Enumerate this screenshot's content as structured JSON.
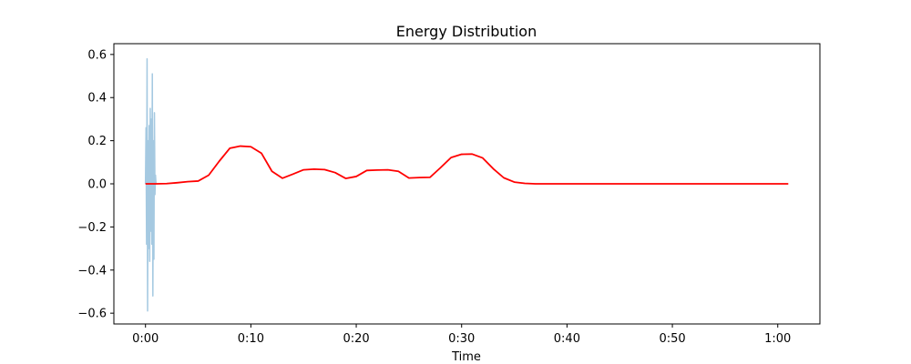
{
  "chart_data": {
    "type": "line",
    "title": "Energy Distribution",
    "xlabel": "Time",
    "ylabel": "",
    "xlim": [
      -3,
      64
    ],
    "ylim": [
      -0.65,
      0.65
    ],
    "grid": false,
    "x_ticks": [
      {
        "value": 0,
        "label": "0:00"
      },
      {
        "value": 10,
        "label": "0:10"
      },
      {
        "value": 20,
        "label": "0:20"
      },
      {
        "value": 30,
        "label": "0:30"
      },
      {
        "value": 40,
        "label": "0:40"
      },
      {
        "value": 50,
        "label": "0:50"
      },
      {
        "value": 60,
        "label": "1:00"
      }
    ],
    "y_ticks": [
      {
        "value": 0.6,
        "label": "0.6"
      },
      {
        "value": 0.4,
        "label": "0.4"
      },
      {
        "value": 0.2,
        "label": "0.2"
      },
      {
        "value": 0.0,
        "label": "0.0"
      },
      {
        "value": -0.2,
        "label": "−0.2"
      },
      {
        "value": -0.4,
        "label": "−0.4"
      },
      {
        "value": -0.6,
        "label": "−0.6"
      }
    ],
    "series": [
      {
        "color": "#1f77b4",
        "opacity": 0.4,
        "x": [
          0.0,
          0.05,
          0.1,
          0.15,
          0.2,
          0.25,
          0.3,
          0.35,
          0.4,
          0.45,
          0.5,
          0.55,
          0.6,
          0.65,
          0.7,
          0.75,
          0.8,
          0.85,
          0.9,
          0.95,
          1.0
        ],
        "y": [
          0.0,
          0.26,
          -0.28,
          0.58,
          -0.59,
          0.2,
          -0.3,
          0.27,
          -0.36,
          0.35,
          -0.22,
          0.3,
          -0.28,
          0.51,
          -0.52,
          0.2,
          -0.35,
          0.33,
          -0.05,
          0.04,
          0.0
        ]
      },
      {
        "color": "#ff0000",
        "opacity": 1,
        "x": [
          0,
          1,
          2,
          3,
          4,
          5,
          6,
          7,
          8,
          9,
          10,
          11,
          12,
          13,
          14,
          15,
          16,
          17,
          18,
          19,
          20,
          21,
          22,
          23,
          24,
          25,
          26,
          27,
          28,
          29,
          30,
          31,
          32,
          33,
          34,
          35,
          36,
          37,
          38,
          39,
          40,
          41,
          42,
          43,
          44,
          45,
          46,
          47,
          48,
          49,
          50,
          51,
          52,
          53,
          54,
          55,
          56,
          57,
          58,
          59,
          60,
          61
        ],
        "y": [
          0.0,
          0.0,
          0.001,
          0.005,
          0.01,
          0.013,
          0.04,
          0.105,
          0.165,
          0.175,
          0.172,
          0.142,
          0.058,
          0.026,
          0.045,
          0.065,
          0.068,
          0.066,
          0.052,
          0.025,
          0.034,
          0.062,
          0.064,
          0.065,
          0.058,
          0.027,
          0.029,
          0.03,
          0.075,
          0.122,
          0.137,
          0.138,
          0.12,
          0.07,
          0.028,
          0.008,
          0.002,
          0.0,
          0.0,
          0.0,
          0.0,
          0.0,
          0.0,
          0.0,
          0.0,
          0.0,
          0.0,
          0.0,
          0.0,
          0.0,
          0.0,
          0.0,
          0.0,
          0.0,
          0.0,
          0.0,
          0.0,
          0.0,
          0.0,
          0.0,
          0.0,
          0.0
        ]
      }
    ]
  }
}
